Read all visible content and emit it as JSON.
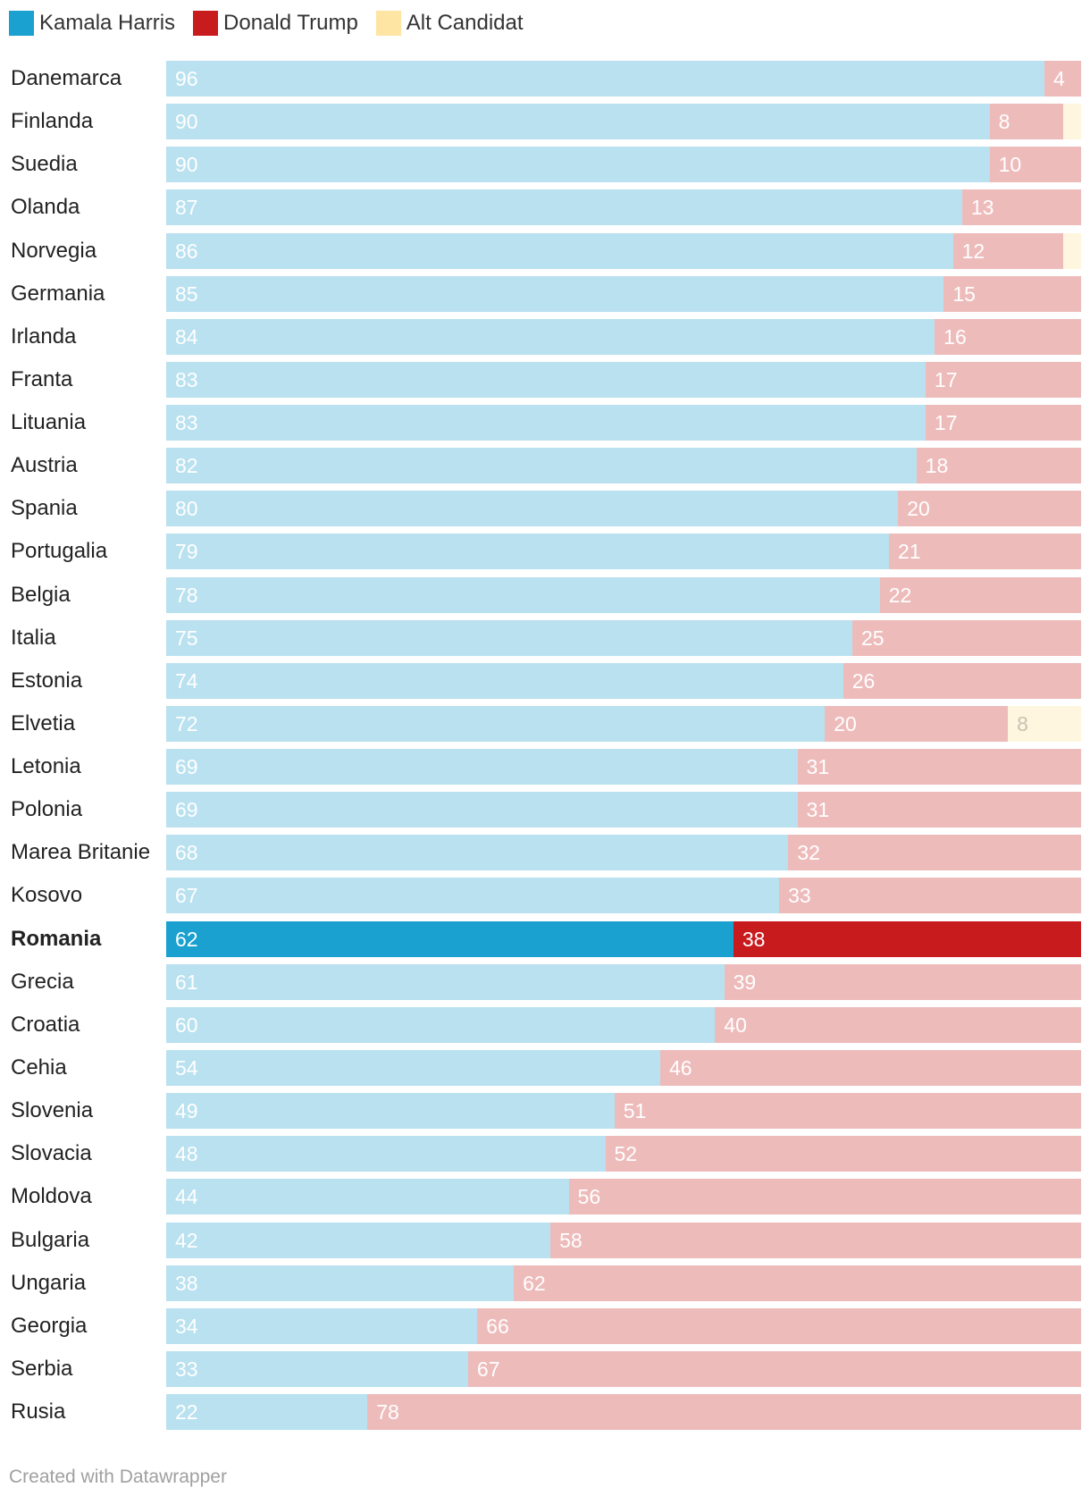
{
  "legend": [
    {
      "label": "Kamala Harris",
      "color": "#1aa1d0"
    },
    {
      "label": "Donald Trump",
      "color": "#c81b1e"
    },
    {
      "label": "Alt Candidat",
      "color": "#ffe5a3"
    }
  ],
  "colors": {
    "harris_light": "#b9e1ef",
    "trump_light": "#eebbbb",
    "alt_light": "#fff6df",
    "harris_highlight": "#1aa1d0",
    "trump_highlight": "#c81b1e"
  },
  "chart_data": {
    "type": "bar",
    "stacked": true,
    "orientation": "horizontal",
    "categories": [
      "Danemarca",
      "Finlanda",
      "Suedia",
      "Olanda",
      "Norvegia",
      "Germania",
      "Irlanda",
      "Franta",
      "Lituania",
      "Austria",
      "Spania",
      "Portugalia",
      "Belgia",
      "Italia",
      "Estonia",
      "Elvetia",
      "Letonia",
      "Polonia",
      "Marea Britanie",
      "Kosovo",
      "Romania",
      "Grecia",
      "Croatia",
      "Cehia",
      "Slovenia",
      "Slovacia",
      "Moldova",
      "Bulgaria",
      "Ungaria",
      "Georgia",
      "Serbia",
      "Rusia"
    ],
    "series": [
      {
        "name": "Kamala Harris",
        "values": [
          96,
          90,
          90,
          87,
          86,
          85,
          84,
          83,
          83,
          82,
          80,
          79,
          78,
          75,
          74,
          72,
          69,
          69,
          68,
          67,
          62,
          61,
          60,
          54,
          49,
          48,
          44,
          42,
          38,
          34,
          33,
          22
        ]
      },
      {
        "name": "Donald Trump",
        "values": [
          4,
          8,
          10,
          13,
          12,
          15,
          16,
          17,
          17,
          18,
          20,
          21,
          22,
          25,
          26,
          20,
          31,
          31,
          32,
          33,
          38,
          39,
          40,
          46,
          51,
          52,
          56,
          58,
          62,
          66,
          67,
          78
        ]
      },
      {
        "name": "Alt Candidat",
        "values": [
          0,
          2,
          0,
          0,
          2,
          0,
          0,
          0,
          0,
          0,
          0,
          0,
          0,
          0,
          0,
          8,
          0,
          0,
          0,
          0,
          0,
          0,
          0,
          0,
          0,
          0,
          0,
          0,
          0,
          0,
          0,
          0
        ]
      }
    ],
    "xlim": [
      0,
      100
    ],
    "highlight": "Romania",
    "grid": false
  },
  "credit": "Created with Datawrapper"
}
